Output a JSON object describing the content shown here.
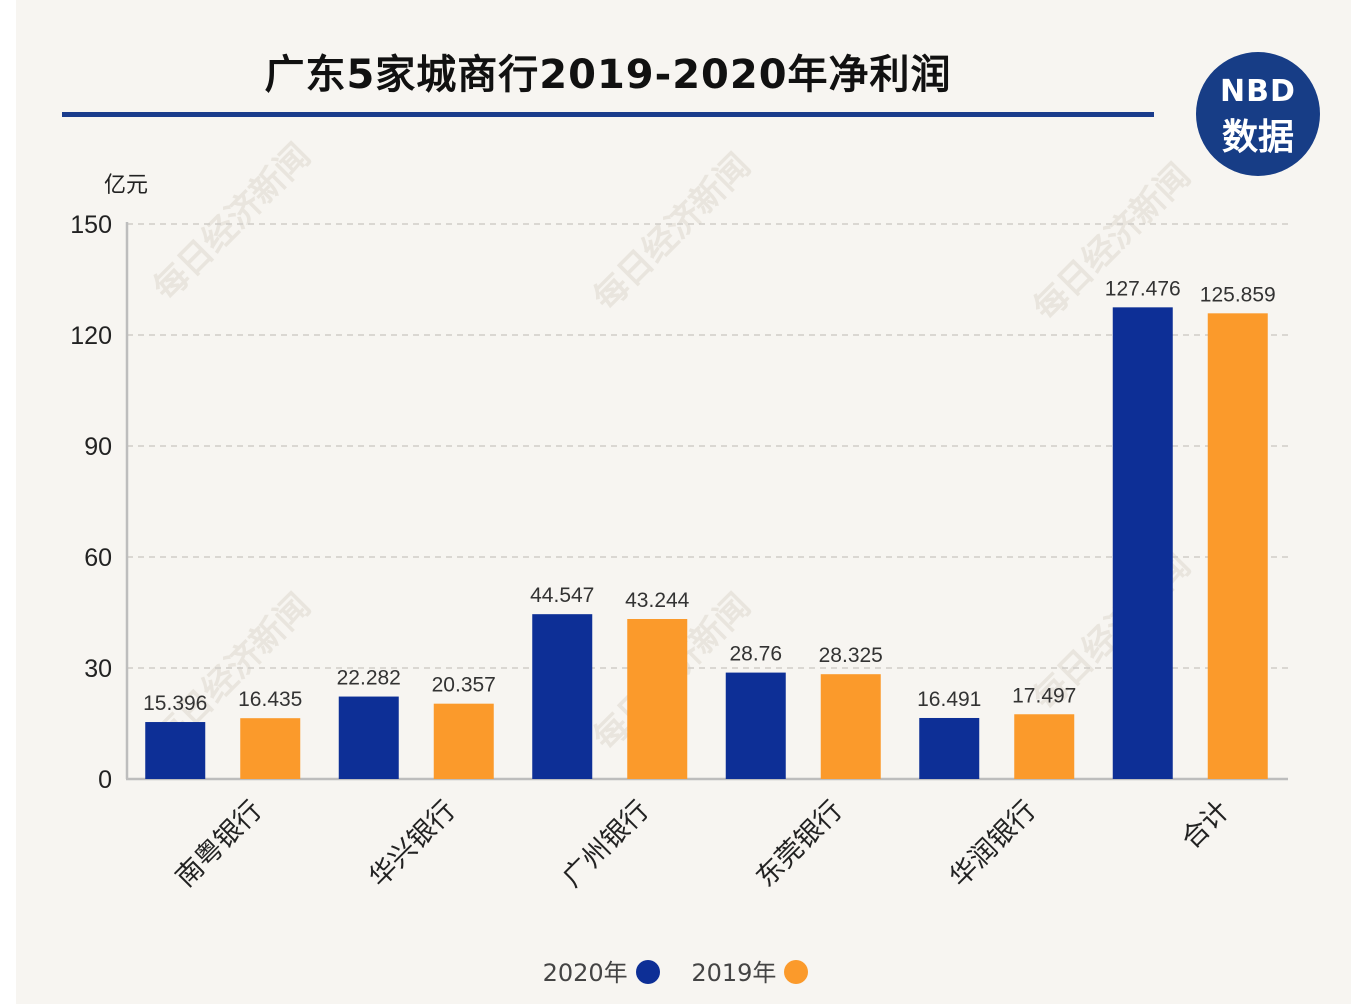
{
  "header": {
    "title": "广东5家城商行2019-2020年净利润",
    "logo_line1": "NBD",
    "logo_line2": "数据"
  },
  "watermark": "每日经济新闻",
  "colors": {
    "series_2020": "#0d2f96",
    "series_2019": "#fb9a2b",
    "title_rule": "#1a3c8c",
    "logo_bg": "#173d86"
  },
  "chart_data": {
    "type": "bar",
    "unit_label": "亿元",
    "categories": [
      "南粤银行",
      "华兴银行",
      "广州银行",
      "东莞银行",
      "华润银行",
      "合计"
    ],
    "series": [
      {
        "name": "2020年",
        "values": [
          15.396,
          22.282,
          44.547,
          28.76,
          16.491,
          127.476
        ],
        "labels": [
          "15.396",
          "22.282",
          "44.547",
          "28.76",
          "16.491",
          "127.476"
        ]
      },
      {
        "name": "2019年",
        "values": [
          16.435,
          20.357,
          43.244,
          28.325,
          17.497,
          125.859
        ],
        "labels": [
          "16.435",
          "20.357",
          "43.244",
          "28.325",
          "17.497",
          "125.859"
        ]
      }
    ],
    "ylim": [
      0,
      150
    ],
    "yticks": [
      "0",
      "30",
      "60",
      "90",
      "120",
      "150"
    ],
    "grid": true,
    "legend_position": "bottom-center"
  }
}
